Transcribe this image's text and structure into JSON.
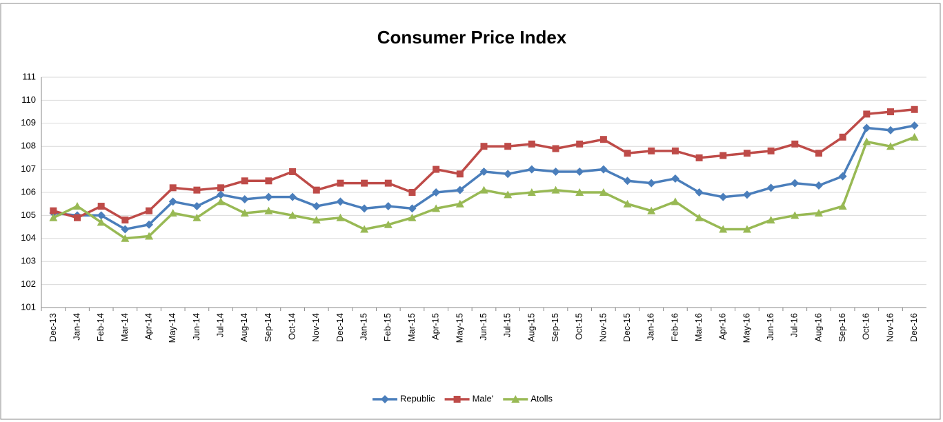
{
  "chart_data": {
    "type": "line",
    "title": "Consumer Price Index",
    "categories": [
      "Dec-13",
      "Jan-14",
      "Feb-14",
      "Mar-14",
      "Apr-14",
      "May-14",
      "Jun-14",
      "Jul-14",
      "Aug-14",
      "Sep-14",
      "Oct-14",
      "Nov-14",
      "Dec-14",
      "Jan-15",
      "Feb-15",
      "Mar-15",
      "Apr-15",
      "May-15",
      "Jun-15",
      "Jul-15",
      "Aug-15",
      "Sep-15",
      "Oct-15",
      "Nov-15",
      "Dec-15",
      "Jan-16",
      "Feb-16",
      "Mar-16",
      "Apr-16",
      "May-16",
      "Jun-16",
      "Jul-16",
      "Aug-16",
      "Sep-16",
      "Oct-16",
      "Nov-16",
      "Dec-16"
    ],
    "series": [
      {
        "name": "Republic",
        "color": "#4a7ebb",
        "marker": "diamond",
        "values": [
          105.1,
          105.0,
          105.0,
          104.4,
          104.6,
          105.6,
          105.4,
          105.9,
          105.7,
          105.8,
          105.8,
          105.4,
          105.6,
          105.3,
          105.4,
          105.3,
          106.0,
          106.1,
          106.9,
          106.8,
          107.0,
          106.9,
          106.9,
          107.0,
          106.5,
          106.4,
          106.6,
          106.0,
          105.8,
          105.9,
          106.2,
          106.4,
          106.3,
          106.7,
          108.8,
          108.7,
          108.9
        ]
      },
      {
        "name": "Male'",
        "color": "#be4b48",
        "marker": "square",
        "values": [
          105.2,
          104.9,
          105.4,
          104.8,
          105.2,
          106.2,
          106.1,
          106.2,
          106.5,
          106.5,
          106.9,
          106.1,
          106.4,
          106.4,
          106.4,
          106.0,
          107.0,
          106.8,
          108.0,
          108.0,
          108.1,
          107.9,
          108.1,
          108.3,
          107.7,
          107.8,
          107.8,
          107.5,
          107.6,
          107.7,
          107.8,
          108.1,
          107.7,
          108.4,
          109.4,
          109.5,
          109.6
        ]
      },
      {
        "name": "Atolls",
        "color": "#98b954",
        "marker": "triangle",
        "values": [
          104.9,
          105.4,
          104.7,
          104.0,
          104.1,
          105.1,
          104.9,
          105.6,
          105.1,
          105.2,
          105.0,
          104.8,
          104.9,
          104.4,
          104.6,
          104.9,
          105.3,
          105.5,
          106.1,
          105.9,
          106.0,
          106.1,
          106.0,
          106.0,
          105.5,
          105.2,
          105.6,
          104.9,
          104.4,
          104.4,
          104.8,
          105.0,
          105.1,
          105.4,
          108.2,
          108.0,
          108.4
        ]
      }
    ],
    "ylim": [
      101,
      111
    ],
    "yticks": [
      101,
      102,
      103,
      104,
      105,
      106,
      107,
      108,
      109,
      110,
      111
    ],
    "grid": true,
    "legend": "bottom"
  }
}
